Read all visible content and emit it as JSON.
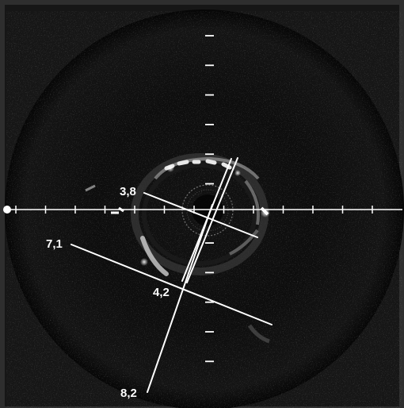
{
  "image": {
    "frame_color": "#2e2e2e",
    "outside_color": "#161616",
    "tissue_color": "#0a0a0a",
    "measure_color": "#ffffff"
  },
  "measurements": {
    "m1": "3,8",
    "m2": "7,1",
    "m3": "4,2",
    "m4": "8,2"
  }
}
